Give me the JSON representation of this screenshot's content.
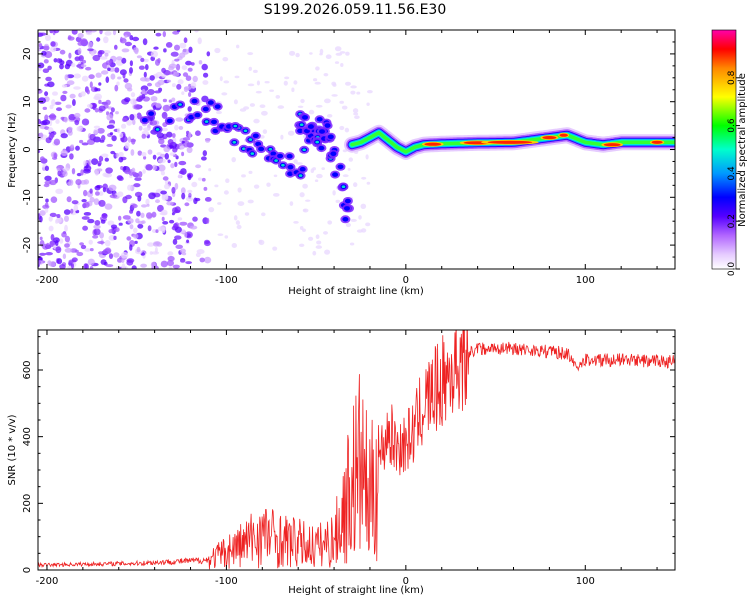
{
  "title": "S199.2026.059.11.56.E30",
  "colors": {
    "snr_line": "#ee2222",
    "frame": "#000000",
    "colormap": [
      "#ffffff",
      "#e6ccff",
      "#b266ff",
      "#7700ff",
      "#0000ff",
      "#00aaff",
      "#00ffcc",
      "#00ff00",
      "#ffff00",
      "#ff8800",
      "#ff0000",
      "#ff00aa"
    ]
  },
  "chart_data": [
    {
      "type": "heatmap",
      "xlabel": "Height of straight line (km)",
      "ylabel": "Frequency (Hz)",
      "xlim": [
        -205,
        150
      ],
      "ylim": [
        -25,
        25
      ],
      "xticks": [
        "-200",
        "-100",
        "0",
        "100"
      ],
      "yticks": [
        "-20",
        "-10",
        "0",
        "10",
        "20"
      ],
      "colorbar": {
        "label": "Normalized spectral amplitude",
        "range": [
          0,
          1
        ],
        "ticks": [
          "0.0",
          "0.2",
          "0.4",
          "0.6",
          "0.8"
        ]
      },
      "ridge": {
        "x": [
          -30,
          -25,
          -20,
          -15,
          -10,
          -5,
          0,
          5,
          10,
          20,
          40,
          60,
          80,
          90,
          100,
          110,
          120,
          150
        ],
        "y": [
          1,
          1.5,
          2.5,
          3.5,
          2,
          0.5,
          -0.5,
          0.5,
          1,
          1.2,
          1.4,
          1.5,
          2.5,
          3,
          1.5,
          1,
          1.5,
          1.5
        ]
      },
      "scatter_branches": [
        {
          "x": [
            -145,
            -120,
            -110,
            -100,
            -90,
            -80,
            -70,
            -60,
            -50,
            -40
          ],
          "y": [
            5,
            8,
            8,
            4,
            2,
            0,
            -2,
            -4,
            6,
            2
          ]
        },
        {
          "x": [
            -60,
            -55,
            -50,
            -45,
            -40,
            -35,
            -30
          ],
          "y": [
            7,
            5,
            3,
            1,
            0,
            -10,
            -15
          ]
        }
      ]
    },
    {
      "type": "line",
      "xlabel": "Height of straight line (km)",
      "ylabel": "SNR (10 * v/v)",
      "xlim": [
        -205,
        150
      ],
      "ylim": [
        0,
        720
      ],
      "xticks": [
        "-200",
        "-100",
        "0",
        "100"
      ],
      "yticks": [
        "0",
        "200",
        "400",
        "600"
      ],
      "trend": {
        "x": [
          -205,
          -150,
          -130,
          -110,
          -100,
          -90,
          -80,
          -70,
          -60,
          -50,
          -40,
          -35,
          -30,
          -25,
          -20,
          -15,
          -10,
          -5,
          0,
          5,
          10,
          20,
          30,
          40,
          60,
          80,
          90,
          95,
          100,
          120,
          150
        ],
        "y": [
          15,
          20,
          25,
          30,
          55,
          80,
          110,
          90,
          80,
          70,
          90,
          170,
          260,
          320,
          200,
          330,
          420,
          370,
          380,
          420,
          500,
          560,
          630,
          665,
          665,
          655,
          650,
          600,
          630,
          630,
          625
        ]
      }
    }
  ]
}
